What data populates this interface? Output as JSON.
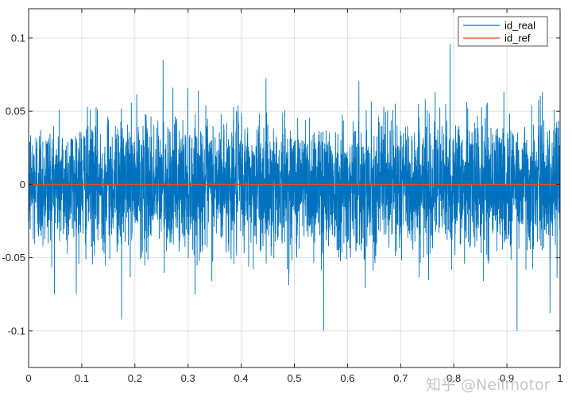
{
  "chart_data": {
    "type": "line",
    "x_ticks": [
      0,
      0.1,
      0.2,
      0.3,
      0.4,
      0.5,
      0.6,
      0.7,
      0.8,
      0.9,
      1
    ],
    "x_tick_labels": [
      "0",
      "0.1",
      "0.2",
      "0.3",
      "0.4",
      "0.5",
      "0.6",
      "0.7",
      "0.8",
      "0.9",
      "1"
    ],
    "y_ticks": [
      -0.1,
      -0.05,
      0,
      0.05,
      0.1
    ],
    "y_tick_labels": [
      "-0.1",
      "-0.05",
      "0",
      "0.05",
      "0.1"
    ],
    "xlim": [
      0,
      1
    ],
    "ylim": [
      -0.125,
      0.12
    ],
    "grid": true,
    "legend_position": "top-right",
    "series": [
      {
        "name": "id_real",
        "color": "#0072BD",
        "description_of_signal": "dense zero-mean noise, roughly ±0.05 envelope",
        "noise_std": 0.022,
        "envelope": 0.05,
        "peaks": [
          {
            "x": 0.175,
            "y": -0.092
          },
          {
            "x": 0.253,
            "y": 0.085
          },
          {
            "x": 0.555,
            "y": -0.1
          },
          {
            "x": 0.793,
            "y": 0.096
          },
          {
            "x": 0.919,
            "y": -0.1
          },
          {
            "x": 0.981,
            "y": -0.088
          }
        ]
      },
      {
        "name": "id_ref",
        "color": "#D95319",
        "x": [
          0,
          1
        ],
        "y": [
          0,
          0
        ]
      }
    ]
  },
  "watermark": "知乎 @Neilmotor"
}
